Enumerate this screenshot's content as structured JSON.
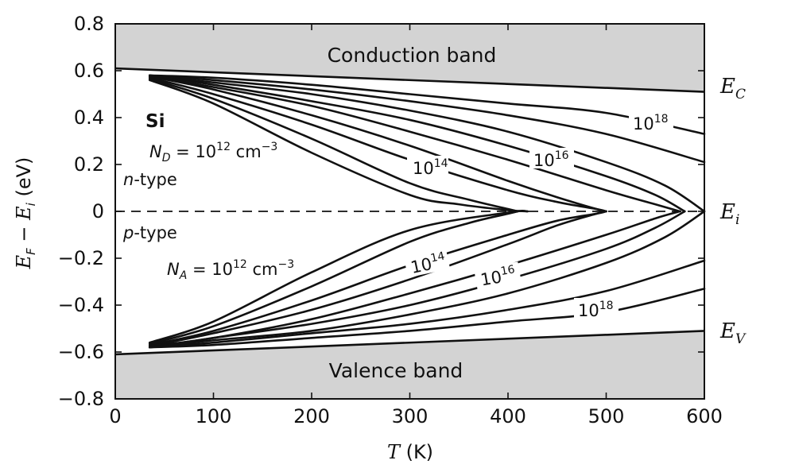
{
  "chart_data": {
    "type": "line",
    "xlabel": "T (K)",
    "ylabel": "E_F − E_i (eV)",
    "xlim": [
      0,
      600
    ],
    "ylim": [
      -0.8,
      0.8
    ],
    "xticks": [
      "0",
      "100",
      "200",
      "300",
      "400",
      "500",
      "600"
    ],
    "yticks": [
      "0.8",
      "0.6",
      "0.4",
      "0.2",
      "0",
      "-0.2",
      "-0.4",
      "-0.6",
      "-0.8"
    ],
    "grid": false,
    "material": "Si",
    "conduction_band_label": "Conduction band",
    "valence_band_label": "Valence band",
    "ec_label": "E_C",
    "ei_label": "E_i",
    "ev_label": "E_V",
    "n_type_label": "n-type",
    "p_type_label": "p-type",
    "nd_label": "N_D = 10^12 cm^-3",
    "na_label": "N_A = 10^12 cm^-3",
    "curve_labels": [
      "10^14",
      "10^16",
      "10^18",
      "10^14",
      "10^16",
      "10^18"
    ],
    "band_edges": {
      "Ec": {
        "x": [
          0,
          600
        ],
        "y": [
          0.61,
          0.51
        ]
      },
      "Ev": {
        "x": [
          0,
          600
        ],
        "y": [
          -0.61,
          -0.51
        ]
      }
    },
    "intrinsic_line": {
      "y": 0,
      "style": "dashed"
    },
    "series": [
      {
        "x": [
          35,
          100,
          200,
          300,
          350,
          400,
          420
        ],
        "y": [
          0.56,
          0.46,
          0.25,
          0.07,
          0.03,
          0.005,
          0.0
        ]
      },
      {
        "x": [
          35,
          100,
          200,
          300,
          360,
          400,
          410
        ],
        "y": [
          0.565,
          0.48,
          0.31,
          0.12,
          0.05,
          0.01,
          0.0
        ]
      },
      {
        "x": [
          35,
          100,
          200,
          300,
          400,
          450,
          490,
          500
        ],
        "y": [
          0.57,
          0.5,
          0.37,
          0.22,
          0.09,
          0.04,
          0.01,
          0.0
        ]
      },
      {
        "x": [
          35,
          100,
          200,
          300,
          400,
          450,
          490,
          500
        ],
        "y": [
          0.575,
          0.52,
          0.41,
          0.28,
          0.13,
          0.06,
          0.01,
          0.0
        ]
      },
      {
        "x": [
          35,
          100,
          200,
          300,
          400,
          500,
          550,
          575
        ],
        "y": [
          0.575,
          0.53,
          0.45,
          0.34,
          0.22,
          0.09,
          0.03,
          0.0
        ]
      },
      {
        "x": [
          35,
          100,
          200,
          300,
          400,
          500,
          550,
          580
        ],
        "y": [
          0.58,
          0.54,
          0.47,
          0.39,
          0.28,
          0.15,
          0.07,
          0.0
        ]
      },
      {
        "x": [
          35,
          100,
          200,
          300,
          400,
          500,
          560,
          600
        ],
        "y": [
          0.58,
          0.55,
          0.5,
          0.43,
          0.34,
          0.21,
          0.11,
          0.0
        ]
      },
      {
        "x": [
          35,
          100,
          200,
          300,
          400,
          500,
          600
        ],
        "y": [
          0.58,
          0.56,
          0.52,
          0.47,
          0.41,
          0.33,
          0.21
        ]
      },
      {
        "x": [
          35,
          100,
          200,
          300,
          400,
          500,
          600
        ],
        "y": [
          0.58,
          0.57,
          0.54,
          0.5,
          0.46,
          0.42,
          0.33
        ]
      },
      {
        "x": [
          35,
          100,
          200,
          300,
          400,
          420
        ],
        "y": [
          -0.56,
          -0.47,
          -0.26,
          -0.08,
          -0.005,
          0.0
        ]
      },
      {
        "x": [
          35,
          100,
          200,
          300,
          360,
          400,
          410
        ],
        "y": [
          -0.565,
          -0.49,
          -0.32,
          -0.13,
          -0.05,
          -0.01,
          0.0
        ]
      },
      {
        "x": [
          35,
          100,
          200,
          300,
          400,
          450,
          490,
          500
        ],
        "y": [
          -0.57,
          -0.51,
          -0.38,
          -0.23,
          -0.1,
          -0.04,
          -0.01,
          0.0
        ]
      },
      {
        "x": [
          35,
          100,
          200,
          300,
          400,
          450,
          490,
          500
        ],
        "y": [
          -0.575,
          -0.52,
          -0.42,
          -0.29,
          -0.14,
          -0.06,
          -0.01,
          0.0
        ]
      },
      {
        "x": [
          35,
          100,
          200,
          300,
          400,
          500,
          550,
          575
        ],
        "y": [
          -0.575,
          -0.54,
          -0.46,
          -0.35,
          -0.23,
          -0.1,
          -0.03,
          0.0
        ]
      },
      {
        "x": [
          35,
          100,
          200,
          300,
          400,
          500,
          550,
          580
        ],
        "y": [
          -0.58,
          -0.54,
          -0.48,
          -0.4,
          -0.29,
          -0.16,
          -0.07,
          0.0
        ]
      },
      {
        "x": [
          35,
          100,
          200,
          300,
          400,
          500,
          560,
          600
        ],
        "y": [
          -0.58,
          -0.55,
          -0.51,
          -0.44,
          -0.35,
          -0.22,
          -0.11,
          0.0
        ]
      },
      {
        "x": [
          35,
          100,
          200,
          300,
          400,
          500,
          600
        ],
        "y": [
          -0.58,
          -0.56,
          -0.52,
          -0.48,
          -0.42,
          -0.34,
          -0.21
        ]
      },
      {
        "x": [
          35,
          100,
          200,
          300,
          400,
          500,
          600
        ],
        "y": [
          -0.58,
          -0.57,
          -0.54,
          -0.51,
          -0.47,
          -0.43,
          -0.33
        ]
      }
    ],
    "colors": {
      "band_fill": "#d3d3d3",
      "line": "#111111",
      "background": "#ffffff"
    }
  }
}
